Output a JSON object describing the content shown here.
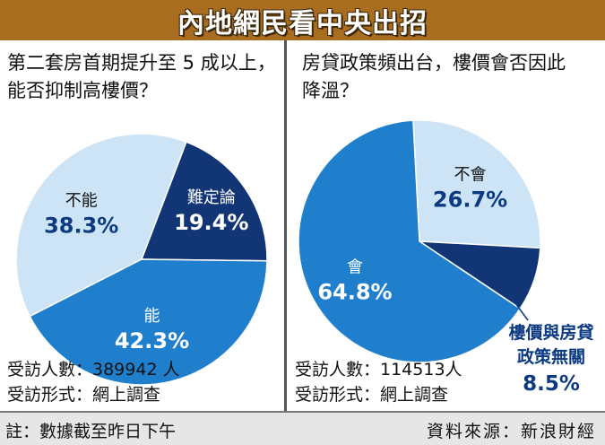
{
  "title": "內地網民看中央出招",
  "footer": {
    "note": "註：數據截至昨日下午",
    "source": "資料來源：新浪財經"
  },
  "colors": {
    "light": "#cde4f6",
    "mid": "#1f7fcc",
    "dark": "#123675",
    "title_bg": "#a86d1e"
  },
  "chart_data": [
    {
      "type": "pie",
      "title": "第二套房首期提升至 5 成以上，能否抑制高樓價？",
      "slices": [
        {
          "label": "不能",
          "value": 38.3,
          "display": "38.3%",
          "color": "#cde4f6",
          "text_color": "#111111",
          "value_color": "#0c3a82"
        },
        {
          "label": "難定論",
          "value": 19.4,
          "display": "19.4%",
          "color": "#123675",
          "text_color": "#ffffff",
          "value_color": "#ffffff"
        },
        {
          "label": "能",
          "value": 42.3,
          "display": "42.3%",
          "color": "#1f7fcc",
          "text_color": "#ffffff",
          "value_color": "#ffffff"
        }
      ],
      "survey": {
        "respondents": "受訪人數：389942 人",
        "method": "受訪形式：網上調查"
      }
    },
    {
      "type": "pie",
      "title": "房貸政策頻出台，樓價會否因此降溫？",
      "slices": [
        {
          "label": "不會",
          "value": 26.7,
          "display": "26.7%",
          "color": "#cde4f6",
          "text_color": "#111111",
          "value_color": "#0c3a82"
        },
        {
          "label": "樓價與房貸政策無關",
          "value": 8.5,
          "display": "8.5%",
          "color": "#123675",
          "text_color": "#0c3a82",
          "value_color": "#0c3a82",
          "label_lines": [
            "樓價與房貸",
            "政策無關"
          ]
        },
        {
          "label": "會",
          "value": 64.8,
          "display": "64.8%",
          "color": "#1f7fcc",
          "text_color": "#ffffff",
          "value_color": "#ffffff"
        }
      ],
      "survey": {
        "respondents": "受訪人數：114513人",
        "method": "受訪形式：網上調查"
      }
    }
  ]
}
